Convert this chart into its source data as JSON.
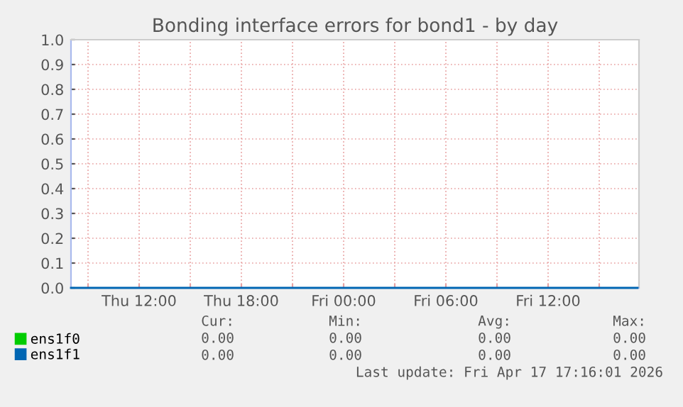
{
  "chart_data": {
    "type": "line",
    "title": "Bonding interface errors for bond1 - by day",
    "x": [
      "2026-04-16T08:00",
      "2026-04-17T17:15"
    ],
    "series": [
      {
        "name": "ens1f0",
        "color": "#00cc00",
        "values": [
          null,
          null
        ]
      },
      {
        "name": "ens1f1",
        "color": "#0066b3",
        "values": [
          0,
          0
        ]
      }
    ],
    "xlim": [
      "2026-04-16T08:00",
      "2026-04-17T17:20"
    ],
    "xticks": [
      {
        "value": "2026-04-16T09:00",
        "label": null
      },
      {
        "value": "2026-04-16T12:00",
        "label": "Thu 12:00"
      },
      {
        "value": "2026-04-16T15:00",
        "label": null
      },
      {
        "value": "2026-04-16T18:00",
        "label": "Thu 18:00"
      },
      {
        "value": "2026-04-16T21:00",
        "label": null
      },
      {
        "value": "2026-04-17T00:00",
        "label": "Fri 00:00"
      },
      {
        "value": "2026-04-17T03:00",
        "label": null
      },
      {
        "value": "2026-04-17T06:00",
        "label": "Fri 06:00"
      },
      {
        "value": "2026-04-17T09:00",
        "label": null
      },
      {
        "value": "2026-04-17T12:00",
        "label": "Fri 12:00"
      },
      {
        "value": "2026-04-17T15:00",
        "label": null
      }
    ],
    "ylim": [
      0,
      1.0
    ],
    "yticks": [
      {
        "value": 0,
        "label": "0.0"
      },
      {
        "value": 0.1,
        "label": "0.1"
      },
      {
        "value": 0.2,
        "label": "0.2"
      },
      {
        "value": 0.3,
        "label": "0.3"
      },
      {
        "value": 0.4,
        "label": "0.4"
      },
      {
        "value": 0.5,
        "label": "0.5"
      },
      {
        "value": 0.6,
        "label": "0.6"
      },
      {
        "value": 0.7,
        "label": "0.7"
      },
      {
        "value": 0.8,
        "label": "0.8"
      },
      {
        "value": 0.9,
        "label": "0.9"
      },
      {
        "value": 1.0,
        "label": "1.0"
      }
    ],
    "grid": true,
    "legend": "bottom left",
    "marker": "none",
    "line_style": "solid",
    "annotations": [
      "Cur:",
      "Min:",
      "Avg:",
      "Max:",
      "0.00",
      "0.00",
      "0.00",
      "0.00",
      "0.00",
      "0.00",
      "0.00",
      "0.00",
      "Last update: Fri Apr 17 17:16:01 2026"
    ]
  }
}
